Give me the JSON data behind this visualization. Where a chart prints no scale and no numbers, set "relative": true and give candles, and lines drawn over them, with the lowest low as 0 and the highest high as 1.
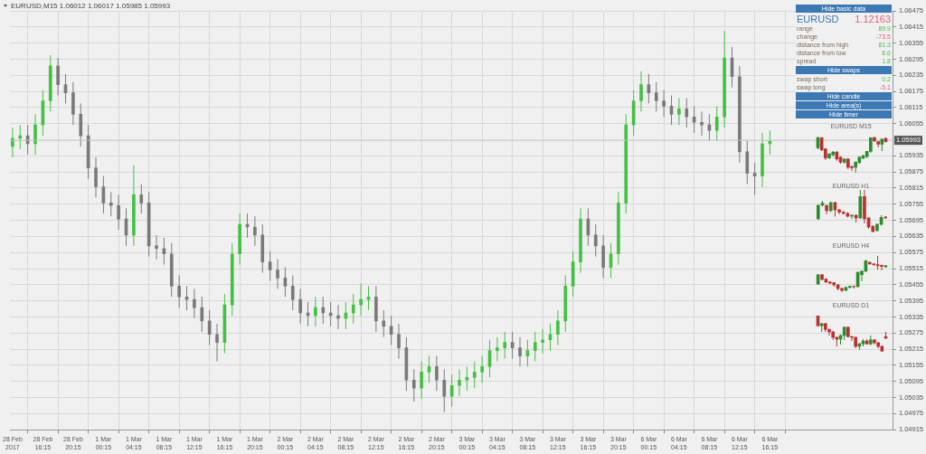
{
  "chart_data": [
    {
      "type": "candlestick",
      "title": "EURUSD,M15 1.06012 1.06017 1.05985 1.05993",
      "categories": [
        "28 Feb 2017",
        null,
        null,
        null,
        "28 Feb 16:15",
        null,
        null,
        null,
        "28 Feb 20:15",
        null,
        null,
        null,
        "1 Mar 00:15",
        null,
        null,
        null,
        "1 Mar 04:15",
        null,
        null,
        null,
        "1 Mar 08:15",
        null,
        null,
        null,
        "1 Mar 12:15",
        null,
        null,
        null,
        "1 Mar 16:15",
        null,
        null,
        null,
        "1 Mar 20:15",
        null,
        null,
        null,
        "2 Mar 00:15",
        null,
        null,
        null,
        "2 Mar 04:15",
        null,
        null,
        null,
        "2 Mar 08:15",
        null,
        null,
        null,
        "2 Mar 12:15",
        null,
        null,
        null,
        "2 Mar 16:15",
        null,
        null,
        null,
        "2 Mar 20:15",
        null,
        null,
        null,
        "3 Mar 00:15",
        null,
        null,
        null,
        "3 Mar 04:15",
        null,
        null,
        null,
        "3 Mar 08:15",
        null,
        null,
        null,
        "3 Mar 12:15",
        null,
        null,
        null,
        "3 Mar 16:15",
        null,
        null,
        null,
        "3 Mar 20:15",
        null,
        null,
        null,
        "6 Mar 00:15",
        null,
        null,
        null,
        "6 Mar 04:15",
        null,
        null,
        null,
        "6 Mar 08:15",
        null,
        null,
        null,
        "6 Mar 12:15",
        null,
        null,
        null,
        "6 Mar 16:15",
        null,
        null,
        null,
        null,
        null,
        null,
        null,
        null,
        null,
        null,
        null,
        null,
        null,
        null,
        null,
        null
      ],
      "ohlc": [
        [
          1.0597,
          1.0604,
          1.0593,
          1.06
        ],
        [
          1.06,
          1.0605,
          1.0596,
          1.0601
        ],
        [
          1.0601,
          1.0605,
          1.0594,
          1.0598
        ],
        [
          1.0598,
          1.0609,
          1.0594,
          1.0605
        ],
        [
          1.0605,
          1.0618,
          1.0601,
          1.0614
        ],
        [
          1.0614,
          1.0631,
          1.061,
          1.0627
        ],
        [
          1.0627,
          1.063,
          1.0616,
          1.062
        ],
        [
          1.062,
          1.0624,
          1.0613,
          1.0617
        ],
        [
          1.0617,
          1.0621,
          1.0605,
          1.0609
        ],
        [
          1.0609,
          1.0613,
          1.0597,
          1.0601
        ],
        [
          1.0601,
          1.0605,
          1.0585,
          1.0589
        ],
        [
          1.0589,
          1.0593,
          1.0578,
          1.0582
        ],
        [
          1.0582,
          1.0586,
          1.0572,
          1.0576
        ],
        [
          1.0576,
          1.058,
          1.0571,
          1.0575
        ],
        [
          1.0575,
          1.0579,
          1.0566,
          1.057
        ],
        [
          1.057,
          1.0574,
          1.056,
          1.0564
        ],
        [
          1.0564,
          1.059,
          1.056,
          1.0579
        ],
        [
          1.0579,
          1.0583,
          1.0572,
          1.0576
        ],
        [
          1.0576,
          1.058,
          1.0556,
          1.056
        ],
        [
          1.056,
          1.0564,
          1.0555,
          1.0559
        ],
        [
          1.0559,
          1.0563,
          1.0553,
          1.0557
        ],
        [
          1.0557,
          1.0561,
          1.0541,
          1.0545
        ],
        [
          1.0545,
          1.0549,
          1.0537,
          1.0541
        ],
        [
          1.0541,
          1.0545,
          1.0536,
          1.054
        ],
        [
          1.054,
          1.0544,
          1.0533,
          1.0537
        ],
        [
          1.0537,
          1.0541,
          1.0528,
          1.0532
        ],
        [
          1.0532,
          1.0536,
          1.0523,
          1.0527
        ],
        [
          1.0527,
          1.0531,
          1.0517,
          1.0524
        ],
        [
          1.0524,
          1.0542,
          1.052,
          1.0538
        ],
        [
          1.0538,
          1.0561,
          1.0534,
          1.0557
        ],
        [
          1.0557,
          1.0572,
          1.0553,
          1.0568
        ],
        [
          1.0568,
          1.0572,
          1.0563,
          1.0567
        ],
        [
          1.0567,
          1.0571,
          1.056,
          1.0564
        ],
        [
          1.0564,
          1.0568,
          1.055,
          1.0554
        ],
        [
          1.0554,
          1.0558,
          1.0547,
          1.0551
        ],
        [
          1.0551,
          1.0555,
          1.0544,
          1.0548
        ],
        [
          1.0548,
          1.0552,
          1.0541,
          1.0545
        ],
        [
          1.0545,
          1.0549,
          1.0536,
          1.054
        ],
        [
          1.054,
          1.0544,
          1.0531,
          1.0535
        ],
        [
          1.0535,
          1.0539,
          1.053,
          1.0534
        ],
        [
          1.0534,
          1.0541,
          1.053,
          1.0537
        ],
        [
          1.0537,
          1.0541,
          1.0531,
          1.0535
        ],
        [
          1.0535,
          1.0539,
          1.053,
          1.0534
        ],
        [
          1.0534,
          1.0538,
          1.0529,
          1.0533
        ],
        [
          1.0533,
          1.0539,
          1.0529,
          1.0535
        ],
        [
          1.0535,
          1.0542,
          1.0531,
          1.0538
        ],
        [
          1.0538,
          1.0546,
          1.0534,
          1.054
        ],
        [
          1.054,
          1.0545,
          1.0536,
          1.0541
        ],
        [
          1.0541,
          1.0545,
          1.0528,
          1.0532
        ],
        [
          1.0532,
          1.0536,
          1.0526,
          1.053
        ],
        [
          1.053,
          1.0534,
          1.0523,
          1.0527
        ],
        [
          1.0527,
          1.0531,
          1.0518,
          1.0522
        ],
        [
          1.0522,
          1.0526,
          1.0506,
          1.051
        ],
        [
          1.051,
          1.0514,
          1.0502,
          1.0507
        ],
        [
          1.0507,
          1.0517,
          1.0503,
          1.0513
        ],
        [
          1.0513,
          1.0519,
          1.0509,
          1.0515
        ],
        [
          1.0515,
          1.0519,
          1.0506,
          1.051
        ],
        [
          1.051,
          1.0514,
          1.0498,
          1.0504
        ],
        [
          1.0504,
          1.0512,
          1.05,
          1.0508
        ],
        [
          1.0508,
          1.0514,
          1.0504,
          1.051
        ],
        [
          1.051,
          1.0515,
          1.0506,
          1.0511
        ],
        [
          1.0511,
          1.0517,
          1.0507,
          1.0513
        ],
        [
          1.0513,
          1.0519,
          1.0509,
          1.0515
        ],
        [
          1.0515,
          1.0525,
          1.0511,
          1.0521
        ],
        [
          1.0521,
          1.0526,
          1.0517,
          1.0522
        ],
        [
          1.0522,
          1.0528,
          1.0518,
          1.0524
        ],
        [
          1.0524,
          1.0528,
          1.0518,
          1.0522
        ],
        [
          1.0522,
          1.0526,
          1.0515,
          1.0519
        ],
        [
          1.0519,
          1.0525,
          1.0515,
          1.0521
        ],
        [
          1.0521,
          1.0528,
          1.0517,
          1.0524
        ],
        [
          1.0524,
          1.0529,
          1.052,
          1.0525
        ],
        [
          1.0525,
          1.0531,
          1.0521,
          1.0527
        ],
        [
          1.0527,
          1.0536,
          1.0523,
          1.0532
        ],
        [
          1.0532,
          1.0549,
          1.0528,
          1.0545
        ],
        [
          1.0545,
          1.0558,
          1.0541,
          1.0554
        ],
        [
          1.0554,
          1.0574,
          1.055,
          1.057
        ],
        [
          1.057,
          1.0574,
          1.056,
          1.0564
        ],
        [
          1.0564,
          1.0568,
          1.0556,
          1.056
        ],
        [
          1.056,
          1.0564,
          1.0548,
          1.0552
        ],
        [
          1.0552,
          1.0561,
          1.0548,
          1.0557
        ],
        [
          1.0557,
          1.058,
          1.0553,
          1.0576
        ],
        [
          1.0576,
          1.0609,
          1.0572,
          1.0605
        ],
        [
          1.0605,
          1.0618,
          1.0601,
          1.0614
        ],
        [
          1.0614,
          1.0625,
          1.061,
          1.062
        ],
        [
          1.062,
          1.0624,
          1.0613,
          1.0617
        ],
        [
          1.0617,
          1.0621,
          1.061,
          1.0614
        ],
        [
          1.0614,
          1.0618,
          1.0608,
          1.0612
        ],
        [
          1.0612,
          1.0616,
          1.0605,
          1.0609
        ],
        [
          1.0609,
          1.0615,
          1.0605,
          1.0611
        ],
        [
          1.0611,
          1.0615,
          1.0604,
          1.0608
        ],
        [
          1.0608,
          1.0612,
          1.0602,
          1.0606
        ],
        [
          1.0606,
          1.061,
          1.0601,
          1.0605
        ],
        [
          1.0605,
          1.0609,
          1.0599,
          1.0603
        ],
        [
          1.0603,
          1.0612,
          1.0599,
          1.0608
        ],
        [
          1.0608,
          1.064,
          1.0604,
          1.063
        ],
        [
          1.063,
          1.0634,
          1.0619,
          1.0623
        ],
        [
          1.0623,
          1.0627,
          1.0591,
          1.0595
        ],
        [
          1.0595,
          1.0599,
          1.0583,
          1.0587
        ],
        [
          1.0587,
          1.0591,
          1.0579,
          1.0586
        ],
        [
          1.0586,
          1.0602,
          1.0582,
          1.0598
        ],
        [
          1.0598,
          1.0603,
          1.0594,
          1.0599
        ],
        null,
        null,
        null,
        null,
        null,
        null,
        null,
        null,
        null,
        null,
        null,
        null,
        null,
        null,
        null,
        null
      ],
      "colors": [
        "#44c144",
        "#44c144",
        "#7a7a7a",
        "#44c144",
        "#44c144",
        "#44c144",
        "#7a7a7a",
        "#7a7a7a",
        "#7a7a7a",
        "#7a7a7a",
        "#7a7a7a",
        "#7a7a7a",
        "#7a7a7a",
        "#7a7a7a",
        "#7a7a7a",
        "#7a7a7a",
        "#44c144",
        "#7a7a7a",
        "#7a7a7a",
        "#7a7a7a",
        "#7a7a7a",
        "#7a7a7a",
        "#7a7a7a",
        "#7a7a7a",
        "#7a7a7a",
        "#7a7a7a",
        "#7a7a7a",
        "#7a7a7a",
        "#44c144",
        "#44c144",
        "#44c144",
        "#7a7a7a",
        "#7a7a7a",
        "#7a7a7a",
        "#7a7a7a",
        "#7a7a7a",
        "#7a7a7a",
        "#7a7a7a",
        "#7a7a7a",
        "#7a7a7a",
        "#44c144",
        "#7a7a7a",
        "#7a7a7a",
        "#7a7a7a",
        "#44c144",
        "#44c144",
        "#44c144",
        "#44c144",
        "#7a7a7a",
        "#7a7a7a",
        "#7a7a7a",
        "#7a7a7a",
        "#7a7a7a",
        "#7a7a7a",
        "#44c144",
        "#44c144",
        "#7a7a7a",
        "#7a7a7a",
        "#44c144",
        "#44c144",
        "#44c144",
        "#44c144",
        "#44c144",
        "#44c144",
        "#44c144",
        "#44c144",
        "#7a7a7a",
        "#7a7a7a",
        "#44c144",
        "#44c144",
        "#44c144",
        "#44c144",
        "#44c144",
        "#44c144",
        "#44c144",
        "#44c144",
        "#7a7a7a",
        "#7a7a7a",
        "#7a7a7a",
        "#44c144",
        "#44c144",
        "#44c144",
        "#44c144",
        "#44c144",
        "#7a7a7a",
        "#7a7a7a",
        "#7a7a7a",
        "#7a7a7a",
        "#44c144",
        "#7a7a7a",
        "#7a7a7a",
        "#7a7a7a",
        "#7a7a7a",
        "#44c144",
        "#44c144",
        "#7a7a7a",
        "#7a7a7a",
        "#7a7a7a",
        "#7a7a7a",
        "#44c144",
        "#44c144",
        null,
        null,
        null,
        null,
        null,
        null,
        null,
        null,
        null,
        null,
        null,
        null,
        null,
        null,
        null,
        null
      ],
      "ylim": [
        1.04915,
        1.06475
      ],
      "yticks": [
        1.04915,
        1.04975,
        1.05035,
        1.05095,
        1.05155,
        1.05215,
        1.05275,
        1.05335,
        1.05395,
        1.05455,
        1.05515,
        1.05575,
        1.05635,
        1.05695,
        1.05755,
        1.05815,
        1.05875,
        1.05935,
        1.06055,
        1.06115,
        1.06175,
        1.06235,
        1.06295,
        1.06355,
        1.06415,
        1.06475
      ],
      "ref_lines": [
        {
          "axis": "y",
          "value": 1.05993,
          "label": "1.05993",
          "color": "#c0c0c0"
        }
      ],
      "grid": true
    },
    {
      "type": "other",
      "categories": [
        "Hide basic data",
        "EURUSD",
        "range",
        "change",
        "distance from high",
        "distance from low",
        "spread",
        "Hide swaps",
        "swap short",
        "swap long",
        "Hide candle",
        "Hide area(s)",
        "Hide timer"
      ],
      "value_labels": [
        null,
        "1.12163",
        "89.9",
        "-73.5",
        "81.3",
        "8.6",
        "1.8",
        null,
        "0.2",
        "-5.1",
        null,
        null,
        null
      ],
      "colors": [
        null,
        "#e0607a",
        "#4cc24c",
        "#e0607a",
        "#4cc24c",
        "#4cc24c",
        "#4cc24c",
        null,
        "#4cc24c",
        "#e0607a",
        null,
        null,
        null
      ]
    },
    {
      "type": "candlestick",
      "title": "EURUSD M15",
      "relative": true,
      "categories": [
        null,
        null,
        null,
        null,
        null,
        null,
        null,
        null,
        null,
        null,
        null,
        null,
        null,
        null,
        null,
        null,
        null,
        null,
        null
      ],
      "ohlc": [
        [
          0.69,
          1,
          0.65,
          0.97
        ],
        [
          0.97,
          0.97,
          0.6,
          0.63
        ],
        [
          0.66,
          0.68,
          0.35,
          0.41
        ],
        [
          0.41,
          0.55,
          0.38,
          0.52
        ],
        [
          0.5,
          0.6,
          0.45,
          0.57
        ],
        [
          0.57,
          0.6,
          0.33,
          0.38
        ],
        [
          0.43,
          0.45,
          0.25,
          0.29
        ],
        [
          0.29,
          0.4,
          0.25,
          0.38
        ],
        [
          0.38,
          0.4,
          0.1,
          0.15
        ],
        [
          0.17,
          0.2,
          0.05,
          0.14
        ],
        [
          0.15,
          0.32,
          0,
          0.29
        ],
        [
          0.28,
          0.45,
          0.25,
          0.43
        ],
        [
          0.4,
          0.5,
          0.38,
          0.47
        ],
        [
          0.45,
          0.6,
          0.4,
          0.59
        ],
        [
          0.59,
          0.97,
          0.55,
          0.97
        ],
        [
          0.97,
          1,
          0.85,
          0.88
        ],
        [
          0.86,
          0.88,
          0.7,
          0.79
        ],
        [
          0.79,
          0.95,
          0.6,
          0.93
        ],
        [
          0.95,
          0.97,
          0.84,
          0.86
        ]
      ],
      "colors": [
        "#2e8b2e",
        "#b83232",
        "#b83232",
        "#2e8b2e",
        "#2e8b2e",
        "#b83232",
        "#b83232",
        "#2e8b2e",
        "#b83232",
        "#b83232",
        "#2e8b2e",
        "#2e8b2e",
        "#2e8b2e",
        "#2e8b2e",
        "#2e8b2e",
        "#b83232",
        "#b83232",
        "#2e8b2e",
        "#b83232"
      ]
    },
    {
      "type": "candlestick",
      "title": "EURUSD H1",
      "relative": true,
      "categories": [
        null,
        null,
        null,
        null,
        null,
        null,
        null,
        null,
        null,
        null,
        null,
        null,
        null,
        null,
        null,
        null,
        null
      ],
      "ohlc": [
        [
          0.3,
          0.62,
          0.28,
          0.6
        ],
        [
          0.6,
          0.7,
          0.58,
          0.65
        ],
        [
          0.6,
          0.6,
          0.4,
          0.48
        ],
        [
          0.48,
          0.68,
          0.45,
          0.66
        ],
        [
          0.66,
          0.68,
          0.35,
          0.5
        ],
        [
          0.5,
          0.52,
          0.4,
          0.45
        ],
        [
          0.45,
          0.47,
          0.4,
          0.42
        ],
        [
          0.42,
          0.45,
          0.33,
          0.36
        ],
        [
          0.36,
          0.4,
          0.3,
          0.38
        ],
        [
          0.38,
          0.4,
          0.22,
          0.32
        ],
        [
          0.32,
          0.95,
          0.3,
          0.8
        ],
        [
          0.8,
          1,
          0.2,
          0.3
        ],
        [
          0.32,
          0.33,
          0.08,
          0.12
        ],
        [
          0.14,
          0.15,
          0,
          0.02
        ],
        [
          0.04,
          0.2,
          0.02,
          0.18
        ],
        [
          0.18,
          0.38,
          0.15,
          0.33
        ],
        [
          0.34,
          0.36,
          0.3,
          0.32
        ]
      ],
      "colors": [
        "#2e8b2e",
        "#2e8b2e",
        "#b83232",
        "#2e8b2e",
        "#b83232",
        "#b83232",
        "#b83232",
        "#b83232",
        "#2e8b2e",
        "#b83232",
        "#2e8b2e",
        "#b83232",
        "#b83232",
        "#b83232",
        "#2e8b2e",
        "#2e8b2e",
        "#b83232"
      ]
    },
    {
      "type": "candlestick",
      "title": "EURUSD H4",
      "relative": true,
      "categories": [
        null,
        null,
        null,
        null,
        null,
        null,
        null,
        null,
        null,
        null,
        null,
        null,
        null,
        null,
        null,
        null,
        null,
        null
      ],
      "ohlc": [
        [
          0.22,
          0.5,
          0.2,
          0.48
        ],
        [
          0.48,
          0.5,
          0.33,
          0.35
        ],
        [
          0.36,
          0.38,
          0.25,
          0.28
        ],
        [
          0.28,
          0.3,
          0.22,
          0.25
        ],
        [
          0.26,
          0.28,
          0.15,
          0.2
        ],
        [
          0.2,
          0.22,
          0.05,
          0.1
        ],
        [
          0.1,
          0.12,
          0,
          0.05
        ],
        [
          0.05,
          0.15,
          0.02,
          0.13
        ],
        [
          0.13,
          0.18,
          0.1,
          0.16
        ],
        [
          0.16,
          0.18,
          0.1,
          0.15
        ],
        [
          0.15,
          0.56,
          0.13,
          0.55
        ],
        [
          0.48,
          0.6,
          0.3,
          0.58
        ],
        [
          0.58,
          0.87,
          0.55,
          0.87
        ],
        [
          0.82,
          0.85,
          0.76,
          0.78
        ],
        [
          0.78,
          0.8,
          0.72,
          0.76
        ],
        [
          0.76,
          1,
          0.62,
          0.73
        ],
        [
          0.74,
          0.76,
          0.6,
          0.71
        ],
        [
          0.7,
          0.75,
          0.68,
          0.73
        ]
      ],
      "colors": [
        "#2e8b2e",
        "#b83232",
        "#b83232",
        "#b83232",
        "#b83232",
        "#b83232",
        "#b83232",
        "#2e8b2e",
        "#2e8b2e",
        "#b83232",
        "#2e8b2e",
        "#2e8b2e",
        "#2e8b2e",
        "#b83232",
        "#b83232",
        "#b83232",
        "#b83232",
        "#2e8b2e"
      ]
    },
    {
      "type": "candlestick",
      "title": "EURUSD D1",
      "relative": true,
      "categories": [
        null,
        null,
        null,
        null,
        null,
        null,
        null,
        null,
        null,
        null,
        null,
        null,
        null,
        null,
        null,
        null,
        null,
        null,
        null
      ],
      "ohlc": [
        [
          1,
          1,
          0.7,
          0.72
        ],
        [
          0.72,
          0.8,
          0.55,
          0.78
        ],
        [
          0.78,
          0.8,
          0.55,
          0.62
        ],
        [
          0.62,
          0.64,
          0.45,
          0.55
        ],
        [
          0.55,
          0.58,
          0.33,
          0.4
        ],
        [
          0.4,
          0.42,
          0.15,
          0.35
        ],
        [
          0.35,
          0.48,
          0.2,
          0.45
        ],
        [
          0.45,
          0.7,
          0.33,
          0.68
        ],
        [
          0.68,
          0.7,
          0.4,
          0.42
        ],
        [
          0.42,
          0.44,
          0.3,
          0.4
        ],
        [
          0.4,
          0.42,
          0.1,
          0.15
        ],
        [
          0.15,
          0.25,
          0.05,
          0.22
        ],
        [
          0.22,
          0.35,
          0.15,
          0.3
        ],
        [
          0.3,
          0.35,
          0.2,
          0.22
        ],
        [
          0.22,
          0.45,
          0.18,
          0.33
        ],
        [
          0.33,
          0.35,
          0.2,
          0.25
        ],
        [
          0.25,
          0.28,
          0.1,
          0.15
        ],
        [
          0.15,
          0.18,
          0,
          0.02
        ],
        [
          0.42,
          0.55,
          0.35,
          0.38
        ]
      ],
      "colors": [
        "#b83232",
        "#2e8b2e",
        "#b83232",
        "#b83232",
        "#b83232",
        "#b83232",
        "#2e8b2e",
        "#2e8b2e",
        "#b83232",
        "#b83232",
        "#b83232",
        "#2e8b2e",
        "#2e8b2e",
        "#b83232",
        "#2e8b2e",
        "#b83232",
        "#b83232",
        "#b83232",
        "#b83232"
      ]
    }
  ]
}
